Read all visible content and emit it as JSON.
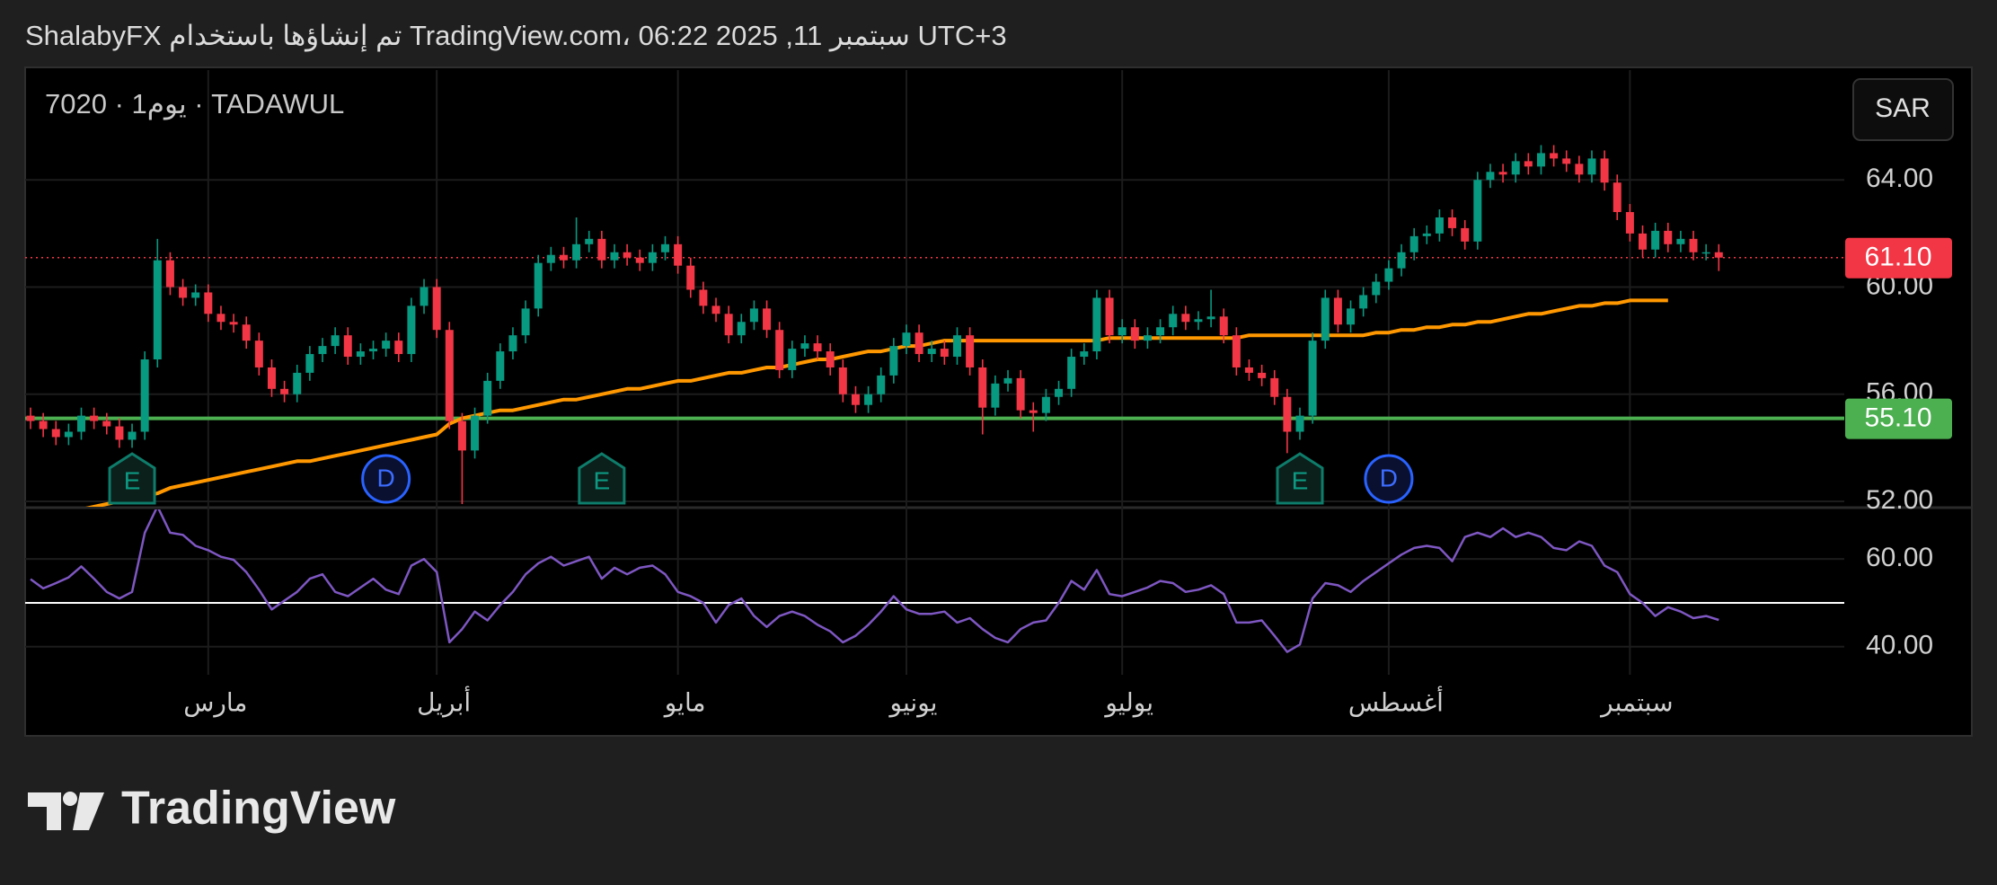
{
  "header": "ShalabyFX تم إنشاؤها باستخدام TradingView.com، 06:22 2025 ,11 سبتمبر UTC+3",
  "chart_data": {
    "type": "candlestick",
    "symbol": "7020 · 1يوم · TADAWUL",
    "currency": "SAR",
    "categories": [
      null,
      null,
      null,
      null,
      null,
      null,
      null,
      null,
      null,
      null,
      null,
      null,
      null,
      null,
      "مارس",
      null,
      null,
      null,
      null,
      null,
      null,
      null,
      null,
      null,
      null,
      null,
      null,
      null,
      null,
      null,
      null,
      null,
      "أبريل",
      null,
      null,
      null,
      null,
      null,
      null,
      null,
      null,
      null,
      null,
      null,
      null,
      null,
      null,
      null,
      null,
      null,
      null,
      "مايو",
      null,
      null,
      null,
      null,
      null,
      null,
      null,
      null,
      null,
      null,
      null,
      null,
      null,
      null,
      null,
      null,
      null,
      "يونيو",
      null,
      null,
      null,
      null,
      null,
      null,
      null,
      null,
      null,
      null,
      null,
      null,
      null,
      null,
      null,
      null,
      "يوليو",
      null,
      null,
      null,
      null,
      null,
      null,
      null,
      null,
      null,
      null,
      null,
      null,
      null,
      null,
      null,
      null,
      null,
      null,
      null,
      null,
      "أغسطس",
      null,
      null,
      null,
      null,
      null,
      null,
      null,
      null,
      null,
      null,
      null,
      null,
      null,
      null,
      null,
      null,
      null,
      null,
      "سبتمبر",
      null,
      null,
      null,
      null,
      null,
      null,
      null
    ],
    "open": [
      55.2,
      55.0,
      54.7,
      54.4,
      54.6,
      55.2,
      55.0,
      54.8,
      54.3,
      54.6,
      57.3,
      61.0,
      60.0,
      59.6,
      59.8,
      59.0,
      58.7,
      58.6,
      58.0,
      57.0,
      56.2,
      56.0,
      56.8,
      57.5,
      57.8,
      58.2,
      57.4,
      57.6,
      57.7,
      58.0,
      57.5,
      59.3,
      60.0,
      58.4,
      55.0,
      53.9,
      55.2,
      56.5,
      57.6,
      58.2,
      59.2,
      60.9,
      61.2,
      61.0,
      61.6,
      61.8,
      61.0,
      61.3,
      61.1,
      60.9,
      61.3,
      61.6,
      60.8,
      59.9,
      59.3,
      59.0,
      58.2,
      58.7,
      59.2,
      58.4,
      56.9,
      57.7,
      57.9,
      57.6,
      57.0,
      56.0,
      55.6,
      56.0,
      56.7,
      57.8,
      58.3,
      57.5,
      57.7,
      57.4,
      58.2,
      57.0,
      55.5,
      56.4,
      56.6,
      55.4,
      55.3,
      55.9,
      56.2,
      57.4,
      57.6,
      59.6,
      58.2,
      58.5,
      58.0,
      58.2,
      58.5,
      59.0,
      58.7,
      58.8,
      58.9,
      58.2,
      57.0,
      56.8,
      56.6,
      55.9,
      54.6,
      55.2,
      58.0,
      59.6,
      58.6,
      59.2,
      59.7,
      60.2,
      60.7,
      61.3,
      61.9,
      62.0,
      62.6,
      62.2,
      61.7,
      64.0,
      64.3,
      64.2,
      64.7,
      64.5,
      65.0,
      64.8,
      64.6,
      64.2,
      64.8,
      63.9,
      62.8,
      62.0,
      61.4,
      62.1,
      61.6,
      61.8,
      61.3,
      61.3
    ],
    "high": [
      55.5,
      55.3,
      55.0,
      54.9,
      55.5,
      55.5,
      55.3,
      55.1,
      54.9,
      57.6,
      61.8,
      61.3,
      60.3,
      60.1,
      60.1,
      59.3,
      59.0,
      58.9,
      58.3,
      57.3,
      56.5,
      57.1,
      57.8,
      58.1,
      58.5,
      58.5,
      57.9,
      58.0,
      58.3,
      58.3,
      59.6,
      60.3,
      60.3,
      58.7,
      55.3,
      55.5,
      56.8,
      57.9,
      58.5,
      59.5,
      61.2,
      61.5,
      61.5,
      62.6,
      62.1,
      62.1,
      61.6,
      61.6,
      61.4,
      61.6,
      61.9,
      61.9,
      61.1,
      60.2,
      59.6,
      59.3,
      59.0,
      59.5,
      59.5,
      58.7,
      58.0,
      58.2,
      58.2,
      57.9,
      57.3,
      56.3,
      56.3,
      57.0,
      58.1,
      58.6,
      58.6,
      58.0,
      58.0,
      58.5,
      58.5,
      57.3,
      56.7,
      56.9,
      56.9,
      55.7,
      56.2,
      56.5,
      57.7,
      57.9,
      59.9,
      59.9,
      58.8,
      58.8,
      58.5,
      58.8,
      59.3,
      59.3,
      59.1,
      59.9,
      59.2,
      58.5,
      57.3,
      57.1,
      56.9,
      56.2,
      55.5,
      58.3,
      59.9,
      59.9,
      59.5,
      60.0,
      60.5,
      61.0,
      61.6,
      62.2,
      62.3,
      62.9,
      62.9,
      62.5,
      64.3,
      64.6,
      64.6,
      65.0,
      65.0,
      65.3,
      65.3,
      65.1,
      64.9,
      65.1,
      65.1,
      64.2,
      63.1,
      62.3,
      62.4,
      62.4,
      62.1,
      62.1,
      61.6,
      61.6
    ],
    "low": [
      54.7,
      54.4,
      54.1,
      54.1,
      54.3,
      54.7,
      54.5,
      54.0,
      54.0,
      54.3,
      57.0,
      59.7,
      59.3,
      59.3,
      58.7,
      58.4,
      58.3,
      57.7,
      56.7,
      55.9,
      55.7,
      55.7,
      56.5,
      57.2,
      57.5,
      57.1,
      57.1,
      57.3,
      57.4,
      57.2,
      57.2,
      59.0,
      58.1,
      54.7,
      51.9,
      53.6,
      54.9,
      56.2,
      57.3,
      57.9,
      58.9,
      60.6,
      60.7,
      60.7,
      61.3,
      60.7,
      60.7,
      60.8,
      60.6,
      60.6,
      61.0,
      60.5,
      59.6,
      59.0,
      58.7,
      57.9,
      57.9,
      58.4,
      58.1,
      56.6,
      56.6,
      57.4,
      57.3,
      56.7,
      55.7,
      55.3,
      55.3,
      55.7,
      56.4,
      57.5,
      57.2,
      57.2,
      57.1,
      57.1,
      56.7,
      54.5,
      55.2,
      56.1,
      55.1,
      54.6,
      55.0,
      55.6,
      55.9,
      57.1,
      57.3,
      57.9,
      57.9,
      57.7,
      57.7,
      57.9,
      58.2,
      58.4,
      58.4,
      58.5,
      57.9,
      56.7,
      56.5,
      56.3,
      55.6,
      53.8,
      54.3,
      54.9,
      57.7,
      58.3,
      58.3,
      58.9,
      59.4,
      59.9,
      60.4,
      61.0,
      61.6,
      61.7,
      61.9,
      61.4,
      61.4,
      63.7,
      63.9,
      63.9,
      64.2,
      64.2,
      64.5,
      64.3,
      63.9,
      63.9,
      63.6,
      62.5,
      61.7,
      61.1,
      61.1,
      61.3,
      61.3,
      61.0,
      61.0,
      60.6
    ],
    "close": [
      55.0,
      54.7,
      54.4,
      54.6,
      55.2,
      55.0,
      54.8,
      54.3,
      54.6,
      57.3,
      61.0,
      60.0,
      59.6,
      59.8,
      59.0,
      58.7,
      58.6,
      58.0,
      57.0,
      56.2,
      56.0,
      56.8,
      57.5,
      57.8,
      58.2,
      57.4,
      57.6,
      57.7,
      58.0,
      57.5,
      59.3,
      60.0,
      58.4,
      55.0,
      53.9,
      55.2,
      56.5,
      57.6,
      58.2,
      59.2,
      60.9,
      61.2,
      61.0,
      61.6,
      61.8,
      61.0,
      61.3,
      61.1,
      60.9,
      61.3,
      61.6,
      60.8,
      59.9,
      59.3,
      59.0,
      58.2,
      58.7,
      59.2,
      58.4,
      56.9,
      57.7,
      57.9,
      57.6,
      57.0,
      56.0,
      55.6,
      56.0,
      56.7,
      57.8,
      58.3,
      57.5,
      57.7,
      57.4,
      58.2,
      57.0,
      55.5,
      56.4,
      56.6,
      55.4,
      55.3,
      55.9,
      56.2,
      57.4,
      57.6,
      59.6,
      58.2,
      58.5,
      58.0,
      58.2,
      58.5,
      59.0,
      58.7,
      58.8,
      58.9,
      58.2,
      57.0,
      56.8,
      56.6,
      55.9,
      54.6,
      55.2,
      58.0,
      59.6,
      58.6,
      59.2,
      59.7,
      60.2,
      60.7,
      61.3,
      61.9,
      62.0,
      62.6,
      62.2,
      61.7,
      64.0,
      64.3,
      64.2,
      64.7,
      64.5,
      65.0,
      64.8,
      64.6,
      64.2,
      64.8,
      63.9,
      62.8,
      62.0,
      61.4,
      62.1,
      61.6,
      61.8,
      61.3,
      61.3,
      61.1
    ],
    "up_color": "#089981",
    "down_color": "#f23645",
    "ylim": [
      51.8,
      68.1
    ],
    "yticks": [
      {
        "value": 52,
        "label": "52.00"
      },
      {
        "value": 56,
        "label": "56.00"
      },
      {
        "value": 60,
        "label": "60.00"
      },
      {
        "value": 64,
        "label": "64.00"
      }
    ],
    "grid": true,
    "moving_average": {
      "color": "#ff9800",
      "values": [
        51.2,
        51.3,
        51.4,
        51.5,
        51.7,
        51.8,
        51.9,
        52.0,
        52.1,
        52.2,
        52.3,
        52.5,
        52.6,
        52.7,
        52.8,
        52.9,
        53.0,
        53.1,
        53.2,
        53.3,
        53.4,
        53.5,
        53.5,
        53.6,
        53.7,
        53.8,
        53.9,
        54.0,
        54.1,
        54.2,
        54.3,
        54.4,
        54.5,
        54.9,
        55.1,
        55.2,
        55.3,
        55.4,
        55.4,
        55.5,
        55.6,
        55.7,
        55.8,
        55.8,
        55.9,
        56.0,
        56.1,
        56.2,
        56.2,
        56.3,
        56.4,
        56.5,
        56.5,
        56.6,
        56.7,
        56.8,
        56.8,
        56.9,
        57.0,
        57.0,
        57.1,
        57.2,
        57.3,
        57.3,
        57.4,
        57.5,
        57.6,
        57.6,
        57.7,
        57.8,
        57.8,
        57.9,
        58.0,
        58.0,
        58.0,
        58.0,
        58.0,
        58.0,
        58.0,
        58.0,
        58.0,
        58.0,
        58.0,
        58.0,
        58.0,
        58.1,
        58.1,
        58.1,
        58.1,
        58.1,
        58.1,
        58.1,
        58.1,
        58.1,
        58.1,
        58.1,
        58.2,
        58.2,
        58.2,
        58.2,
        58.2,
        58.2,
        58.2,
        58.2,
        58.2,
        58.2,
        58.3,
        58.3,
        58.4,
        58.4,
        58.5,
        58.5,
        58.6,
        58.6,
        58.7,
        58.7,
        58.8,
        58.9,
        59.0,
        59.0,
        59.1,
        59.2,
        59.3,
        59.3,
        59.4,
        59.4,
        59.5,
        59.5,
        59.5,
        59.5,
        null,
        null,
        null,
        null
      ]
    },
    "price_line": {
      "value": 61.1,
      "label": "61.10",
      "color": "#f23645"
    },
    "horizontal_line": {
      "value": 55.1,
      "label": "55.10",
      "color": "#4caf50"
    },
    "events": [
      {
        "label": "E",
        "index": 8
      },
      {
        "label": "D",
        "index": 28
      },
      {
        "label": "E",
        "index": 45
      },
      {
        "label": "E",
        "index": 100
      },
      {
        "label": "D",
        "index": 107
      }
    ],
    "rsi": {
      "color": "#7e57c2",
      "ylim": [
        33.6,
        71.3
      ],
      "yticks": [
        {
          "value": 40,
          "label": "40.00"
        },
        {
          "value": 60,
          "label": "60.00"
        }
      ],
      "reference": 50,
      "values": [
        55.4,
        53.3,
        54.5,
        55.8,
        58.3,
        55.5,
        52.5,
        51.0,
        52.5,
        66,
        72.0,
        66.0,
        65.5,
        63.0,
        62.0,
        60.5,
        59.8,
        57,
        53,
        48.5,
        50.5,
        52.5,
        55.5,
        56.5,
        52.5,
        51.5,
        53.5,
        55.5,
        53,
        52,
        58.5,
        60,
        57,
        41,
        44,
        48,
        46,
        49.5,
        52.5,
        56.5,
        59,
        60.5,
        58.5,
        59.5,
        60.5,
        55.5,
        58,
        56.5,
        58,
        58.5,
        56.5,
        52.5,
        51.5,
        50,
        45.5,
        49.5,
        51,
        47,
        44.5,
        47,
        48,
        47,
        45,
        43.5,
        41,
        42.5,
        45,
        48,
        51.5,
        48.5,
        47.5,
        47.5,
        48,
        45.5,
        46.5,
        44,
        42,
        41,
        44,
        45.5,
        46,
        50,
        55,
        53,
        57.5,
        52,
        51.5,
        52.5,
        53.5,
        55,
        54.5,
        52.5,
        53,
        54,
        52,
        45.5,
        45.5,
        46,
        42.5,
        38.8,
        40.5,
        51,
        54.5,
        54,
        52.5,
        55,
        57,
        59,
        61,
        62.5,
        63,
        62.5,
        59.5,
        65,
        66,
        65,
        67,
        65,
        66,
        65,
        62.5,
        62,
        64,
        63,
        58.5,
        57,
        52,
        50,
        47,
        49,
        48,
        46.5,
        47,
        46.1
      ]
    }
  },
  "footer": {
    "logo_text": "TradingView"
  }
}
